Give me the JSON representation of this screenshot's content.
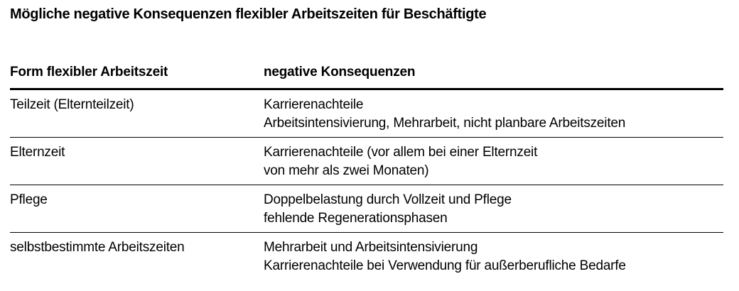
{
  "title": "Mögliche negative Konsequenzen flexibler Arbeitszeiten für Beschäftigte",
  "colors": {
    "text": "#000000",
    "background": "#ffffff",
    "rule": "#000000"
  },
  "table": {
    "headers": [
      "Form flexibler Arbeitszeit",
      "negative Konsequenzen"
    ],
    "rows": [
      {
        "form": "Teilzeit (Elternteilzeit)",
        "lines": [
          "Karrierenachteile",
          "Arbeitsintensivierung, Mehrarbeit, nicht planbare Arbeitszeiten"
        ]
      },
      {
        "form": "Elternzeit",
        "lines": [
          "Karrierenachteile (vor allem bei einer Elternzeit",
          "von mehr als zwei Monaten)"
        ]
      },
      {
        "form": "Pflege",
        "lines": [
          "Doppelbelastung durch Vollzeit und Pflege",
          "fehlende Regenerationsphasen"
        ]
      },
      {
        "form": "selbstbestimmte Arbeitszeiten",
        "lines": [
          "Mehrarbeit und Arbeitsintensivierung",
          "Karrierenachteile bei Verwendung für außerberufliche Bedarfe"
        ]
      }
    ]
  }
}
